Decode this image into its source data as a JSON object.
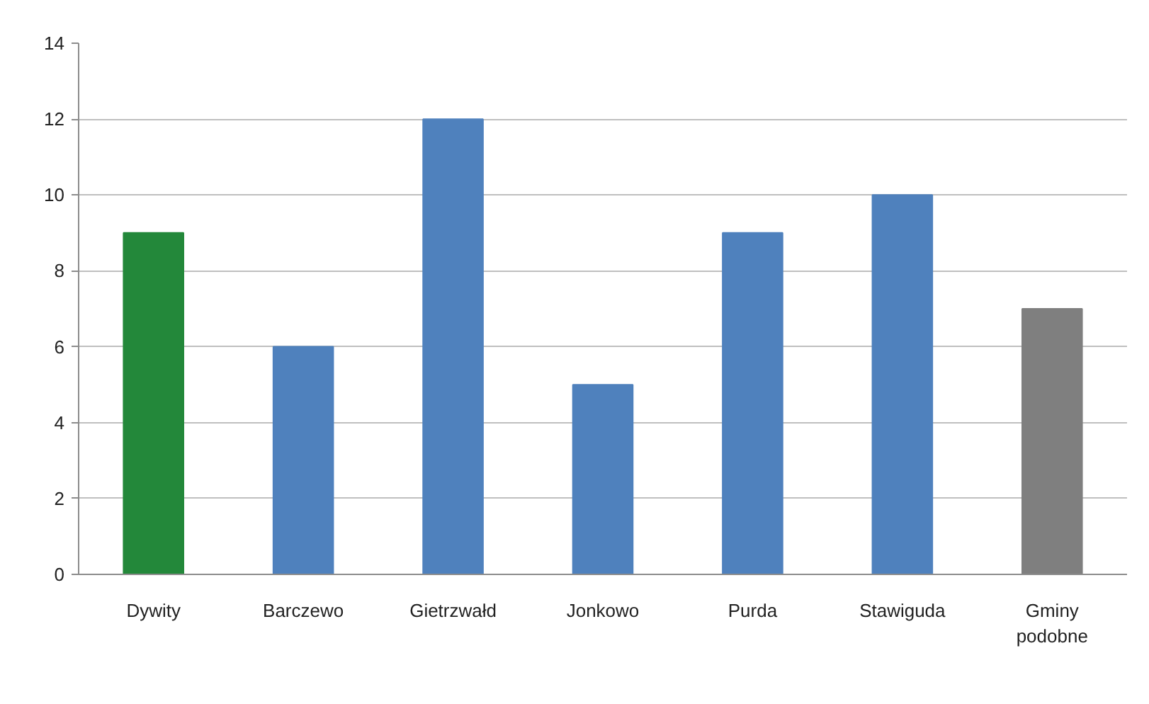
{
  "chart_data": {
    "type": "bar",
    "categories": [
      "Dywity",
      "Barczewo",
      "Gietrzwałd",
      "Jonkowo",
      "Purda",
      "Stawiguda",
      "Gminy podobne"
    ],
    "values": [
      9,
      6,
      12,
      5,
      9,
      10,
      7
    ],
    "colors": [
      "#23883a",
      "#4f81bd",
      "#4f81bd",
      "#4f81bd",
      "#4f81bd",
      "#4f81bd",
      "#7f7f7f"
    ],
    "ylim": [
      0,
      14
    ],
    "yticks": [
      0,
      2,
      4,
      6,
      8,
      10,
      12,
      14
    ],
    "grid": "y"
  }
}
